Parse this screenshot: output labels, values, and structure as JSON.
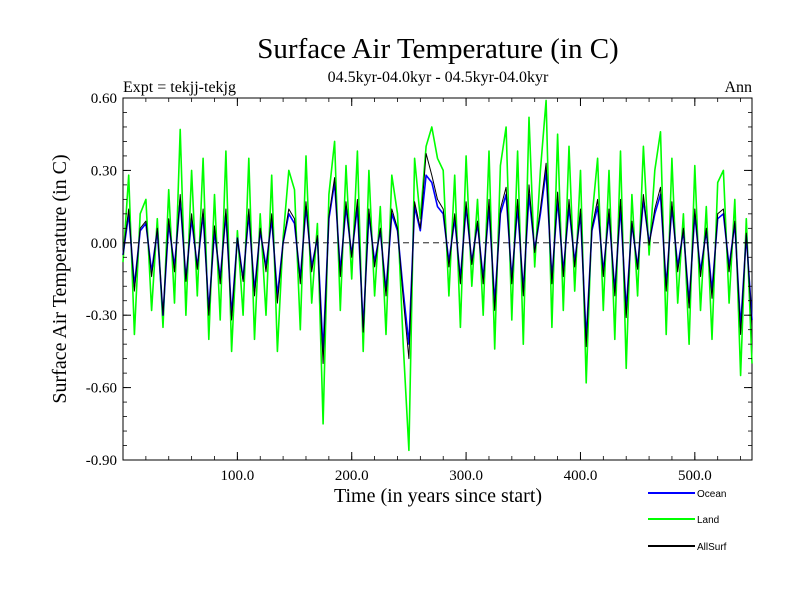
{
  "chart_data": {
    "type": "line",
    "title": "Surface Air Temperature (in C)",
    "subtitle": "04.5kyr-04.0kyr - 04.5kyr-04.0kyr",
    "left_label": "Expt = tekjj-tekjg",
    "right_label": "Ann",
    "xlabel": "Time (in years since start)",
    "ylabel": "Surface Air Temperature (in C)",
    "xlim": [
      0,
      550
    ],
    "ylim": [
      -0.9,
      0.6
    ],
    "x_ticks": [
      100,
      200,
      300,
      400,
      500
    ],
    "x_tick_labels": [
      "100.0",
      "200.0",
      "300.0",
      "400.0",
      "500.0"
    ],
    "y_ticks": [
      -0.9,
      -0.6,
      -0.3,
      0.0,
      0.3,
      0.6
    ],
    "y_tick_labels": [
      "-0.90",
      "-0.60",
      "-0.30",
      "0.00",
      "0.30",
      "0.60"
    ],
    "zero_line": true,
    "legend_position": "bottom-right",
    "series": [
      {
        "name": "Land",
        "color": "#00ff00",
        "x": [
          0,
          5,
          10,
          15,
          20,
          25,
          30,
          35,
          40,
          45,
          50,
          55,
          60,
          65,
          70,
          75,
          80,
          85,
          90,
          95,
          100,
          105,
          110,
          115,
          120,
          125,
          130,
          135,
          140,
          145,
          150,
          155,
          160,
          165,
          170,
          175,
          180,
          185,
          190,
          195,
          200,
          205,
          210,
          215,
          220,
          225,
          230,
          235,
          240,
          245,
          250,
          255,
          260,
          265,
          270,
          275,
          280,
          285,
          290,
          295,
          300,
          305,
          310,
          315,
          320,
          325,
          330,
          335,
          340,
          345,
          350,
          355,
          360,
          365,
          370,
          375,
          380,
          385,
          390,
          395,
          400,
          405,
          410,
          415,
          420,
          425,
          430,
          435,
          440,
          445,
          450,
          455,
          460,
          465,
          470,
          475,
          480,
          485,
          490,
          495,
          500,
          505,
          510,
          515,
          520,
          525,
          530,
          535,
          540,
          545,
          550
        ],
        "values": [
          -0.08,
          0.28,
          -0.38,
          0.12,
          0.18,
          -0.28,
          0.1,
          -0.35,
          0.22,
          -0.25,
          0.47,
          -0.3,
          0.3,
          -0.22,
          0.35,
          -0.4,
          0.2,
          -0.32,
          0.38,
          -0.45,
          0.05,
          -0.3,
          0.35,
          -0.4,
          0.12,
          -0.3,
          0.28,
          -0.45,
          0.02,
          0.3,
          0.22,
          -0.36,
          0.36,
          -0.25,
          0.08,
          -0.75,
          0.2,
          0.42,
          -0.28,
          0.32,
          -0.15,
          0.38,
          -0.45,
          0.3,
          -0.22,
          0.15,
          -0.38,
          0.28,
          0.12,
          -0.42,
          -0.86,
          0.35,
          0.1,
          0.4,
          0.48,
          0.35,
          0.3,
          -0.22,
          0.28,
          -0.35,
          0.36,
          -0.18,
          0.18,
          -0.3,
          0.38,
          -0.44,
          0.32,
          0.48,
          -0.32,
          0.38,
          -0.42,
          0.52,
          -0.1,
          0.3,
          0.59,
          -0.35,
          0.45,
          -0.28,
          0.4,
          -0.2,
          0.3,
          -0.58,
          0.1,
          0.35,
          -0.28,
          0.3,
          -0.4,
          0.38,
          -0.52,
          0.2,
          -0.22,
          0.4,
          -0.05,
          0.3,
          0.46,
          -0.38,
          0.35,
          -0.25,
          0.12,
          -0.42,
          0.32,
          -0.28,
          0.15,
          -0.4,
          0.25,
          0.3,
          -0.25,
          0.18,
          -0.55,
          0.1,
          -0.5
        ]
      },
      {
        "name": "Ocean",
        "color": "#0000ff",
        "x": [
          0,
          5,
          10,
          15,
          20,
          25,
          30,
          35,
          40,
          45,
          50,
          55,
          60,
          65,
          70,
          75,
          80,
          85,
          90,
          95,
          100,
          105,
          110,
          115,
          120,
          125,
          130,
          135,
          140,
          145,
          150,
          155,
          160,
          165,
          170,
          175,
          180,
          185,
          190,
          195,
          200,
          205,
          210,
          215,
          220,
          225,
          230,
          235,
          240,
          245,
          250,
          255,
          260,
          265,
          270,
          275,
          280,
          285,
          290,
          295,
          300,
          305,
          310,
          315,
          320,
          325,
          330,
          335,
          340,
          345,
          350,
          355,
          360,
          365,
          370,
          375,
          380,
          385,
          390,
          395,
          400,
          405,
          410,
          415,
          420,
          425,
          430,
          435,
          440,
          445,
          450,
          455,
          460,
          465,
          470,
          475,
          480,
          485,
          490,
          495,
          500,
          505,
          510,
          515,
          520,
          525,
          530,
          535,
          540,
          545,
          550
        ],
        "values": [
          -0.05,
          0.12,
          -0.18,
          0.05,
          0.08,
          -0.12,
          0.05,
          -0.3,
          0.08,
          -0.1,
          0.18,
          -0.15,
          0.1,
          -0.1,
          0.12,
          -0.28,
          0.05,
          -0.15,
          0.12,
          -0.3,
          0.02,
          -0.15,
          0.12,
          -0.2,
          0.05,
          -0.1,
          0.1,
          -0.22,
          0.0,
          0.12,
          0.08,
          -0.15,
          0.15,
          -0.1,
          0.02,
          -0.45,
          0.1,
          0.25,
          -0.12,
          0.15,
          -0.05,
          0.15,
          -0.35,
          0.12,
          -0.08,
          0.05,
          -0.2,
          0.12,
          0.05,
          -0.2,
          -0.42,
          0.15,
          0.05,
          0.28,
          0.25,
          0.15,
          0.12,
          -0.08,
          0.1,
          -0.15,
          0.15,
          -0.08,
          0.08,
          -0.15,
          0.15,
          -0.25,
          0.12,
          0.2,
          -0.15,
          0.15,
          -0.2,
          0.2,
          -0.03,
          0.12,
          0.3,
          -0.15,
          0.18,
          -0.12,
          0.15,
          -0.08,
          0.12,
          -0.4,
          0.05,
          0.15,
          -0.12,
          0.12,
          -0.2,
          0.15,
          -0.28,
          0.08,
          -0.1,
          0.18,
          0.0,
          0.12,
          0.2,
          -0.18,
          0.15,
          -0.1,
          0.05,
          -0.25,
          0.12,
          -0.12,
          0.05,
          -0.2,
          0.1,
          0.12,
          -0.1,
          0.08,
          -0.35,
          0.03,
          -0.32
        ]
      },
      {
        "name": "AllSurf",
        "color": "#000000",
        "x": [
          0,
          5,
          10,
          15,
          20,
          25,
          30,
          35,
          40,
          45,
          50,
          55,
          60,
          65,
          70,
          75,
          80,
          85,
          90,
          95,
          100,
          105,
          110,
          115,
          120,
          125,
          130,
          135,
          140,
          145,
          150,
          155,
          160,
          165,
          170,
          175,
          180,
          185,
          190,
          195,
          200,
          205,
          210,
          215,
          220,
          225,
          230,
          235,
          240,
          245,
          250,
          255,
          260,
          265,
          270,
          275,
          280,
          285,
          290,
          295,
          300,
          305,
          310,
          315,
          320,
          325,
          330,
          335,
          340,
          345,
          350,
          355,
          360,
          365,
          370,
          375,
          380,
          385,
          390,
          395,
          400,
          405,
          410,
          415,
          420,
          425,
          430,
          435,
          440,
          445,
          450,
          455,
          460,
          465,
          470,
          475,
          480,
          485,
          490,
          495,
          500,
          505,
          510,
          515,
          520,
          525,
          530,
          535,
          540,
          545,
          550
        ],
        "values": [
          -0.05,
          0.14,
          -0.2,
          0.06,
          0.09,
          -0.14,
          0.06,
          -0.3,
          0.1,
          -0.12,
          0.2,
          -0.16,
          0.12,
          -0.11,
          0.14,
          -0.3,
          0.07,
          -0.17,
          0.14,
          -0.32,
          0.02,
          -0.16,
          0.14,
          -0.22,
          0.06,
          -0.12,
          0.12,
          -0.25,
          0.0,
          0.14,
          0.1,
          -0.17,
          0.17,
          -0.12,
          0.03,
          -0.5,
          0.11,
          0.27,
          -0.14,
          0.17,
          -0.06,
          0.18,
          -0.37,
          0.14,
          -0.1,
          0.06,
          -0.22,
          0.14,
          0.06,
          -0.23,
          -0.48,
          0.17,
          0.06,
          0.37,
          0.28,
          0.18,
          0.14,
          -0.1,
          0.12,
          -0.17,
          0.17,
          -0.09,
          0.09,
          -0.17,
          0.18,
          -0.28,
          0.14,
          0.23,
          -0.17,
          0.18,
          -0.22,
          0.24,
          -0.04,
          0.14,
          0.33,
          -0.17,
          0.21,
          -0.14,
          0.18,
          -0.1,
          0.14,
          -0.43,
          0.06,
          0.18,
          -0.14,
          0.14,
          -0.22,
          0.18,
          -0.31,
          0.09,
          -0.11,
          0.2,
          -0.01,
          0.14,
          0.23,
          -0.2,
          0.17,
          -0.12,
          0.06,
          -0.27,
          0.14,
          -0.14,
          0.06,
          -0.23,
          0.12,
          0.14,
          -0.12,
          0.09,
          -0.38,
          0.04,
          -0.35
        ]
      }
    ],
    "legend_order": [
      "Ocean",
      "Land",
      "AllSurf"
    ]
  }
}
